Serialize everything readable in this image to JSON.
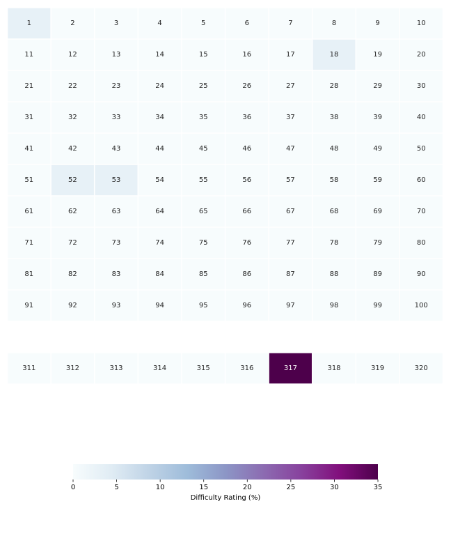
{
  "chart_data": {
    "type": "heatmap",
    "title": "",
    "colorbar": {
      "label": "Difficulty Rating (%)",
      "min": 0,
      "max": 35,
      "ticks": [
        0,
        5,
        10,
        15,
        20,
        25,
        30,
        35
      ],
      "colormap": "BuPu",
      "orientation": "horizontal",
      "placement": "bottom-center"
    },
    "rows": [
      {
        "labels": [
          "1",
          "2",
          "3",
          "4",
          "5",
          "6",
          "7",
          "8",
          "9",
          "10"
        ],
        "values": [
          3,
          0,
          0,
          0,
          0,
          0,
          0,
          0,
          0,
          0
        ]
      },
      {
        "labels": [
          "11",
          "12",
          "13",
          "14",
          "15",
          "16",
          "17",
          "18",
          "19",
          "20"
        ],
        "values": [
          0,
          0,
          0,
          0,
          0,
          0,
          0,
          3,
          0,
          0
        ]
      },
      {
        "labels": [
          "21",
          "22",
          "23",
          "24",
          "25",
          "26",
          "27",
          "28",
          "29",
          "30"
        ],
        "values": [
          0,
          0,
          0,
          0,
          0,
          0,
          0,
          0,
          0,
          0
        ]
      },
      {
        "labels": [
          "31",
          "32",
          "33",
          "34",
          "35",
          "36",
          "37",
          "38",
          "39",
          "40"
        ],
        "values": [
          0,
          0,
          0,
          0,
          0,
          0,
          0,
          0,
          0,
          0
        ]
      },
      {
        "labels": [
          "41",
          "42",
          "43",
          "44",
          "45",
          "46",
          "47",
          "48",
          "49",
          "50"
        ],
        "values": [
          0,
          0,
          0,
          0,
          0,
          0,
          0,
          0,
          0,
          0
        ]
      },
      {
        "labels": [
          "51",
          "52",
          "53",
          "54",
          "55",
          "56",
          "57",
          "58",
          "59",
          "60"
        ],
        "values": [
          0,
          3,
          3,
          0,
          0,
          0,
          0,
          0,
          0,
          0
        ]
      },
      {
        "labels": [
          "61",
          "62",
          "63",
          "64",
          "65",
          "66",
          "67",
          "68",
          "69",
          "70"
        ],
        "values": [
          0,
          0,
          0,
          0,
          0,
          0,
          0,
          0,
          0,
          0
        ]
      },
      {
        "labels": [
          "71",
          "72",
          "73",
          "74",
          "75",
          "76",
          "77",
          "78",
          "79",
          "80"
        ],
        "values": [
          0,
          0,
          0,
          0,
          0,
          0,
          0,
          0,
          0,
          0
        ]
      },
      {
        "labels": [
          "81",
          "82",
          "83",
          "84",
          "85",
          "86",
          "87",
          "88",
          "89",
          "90"
        ],
        "values": [
          0,
          0,
          0,
          0,
          0,
          0,
          0,
          0,
          0,
          0
        ]
      },
      {
        "labels": [
          "91",
          "92",
          "93",
          "94",
          "95",
          "96",
          "97",
          "98",
          "99",
          "100"
        ],
        "values": [
          0,
          0,
          0,
          0,
          0,
          0,
          0,
          0,
          0,
          0
        ]
      },
      {
        "labels": [],
        "values": []
      },
      {
        "labels": [
          "311",
          "312",
          "313",
          "314",
          "315",
          "316",
          "317",
          "318",
          "319",
          "320"
        ],
        "values": [
          0,
          0,
          0,
          0,
          0,
          0,
          35,
          0,
          0,
          0
        ]
      }
    ]
  }
}
